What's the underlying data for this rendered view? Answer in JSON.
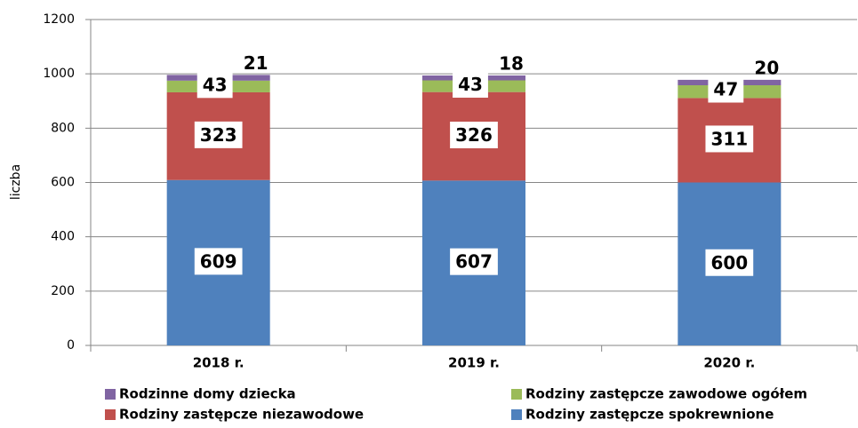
{
  "chart_data": {
    "type": "stacked_bar",
    "y_label": "liczba",
    "categories": [
      "2018 r.",
      "2019 r.",
      "2020 r."
    ],
    "series": [
      {
        "name": "Rodziny zastępcze spokrewnione",
        "color": "#4f81bd",
        "values": [
          609,
          607,
          600
        ]
      },
      {
        "name": "Rodziny zastępcze niezawodowe",
        "color": "#c0504d",
        "values": [
          323,
          326,
          311
        ]
      },
      {
        "name": "Rodziny zastępcze zawodowe ogółem",
        "color": "#9bbb59",
        "values": [
          43,
          43,
          47
        ]
      },
      {
        "name": "Rodzinne domy dziecka",
        "color": "#8064a2",
        "values": [
          21,
          18,
          20
        ]
      }
    ],
    "ylim": [
      0,
      1200
    ],
    "yticks": [
      0,
      200,
      400,
      600,
      800,
      1000,
      1200
    ],
    "grid": true
  }
}
